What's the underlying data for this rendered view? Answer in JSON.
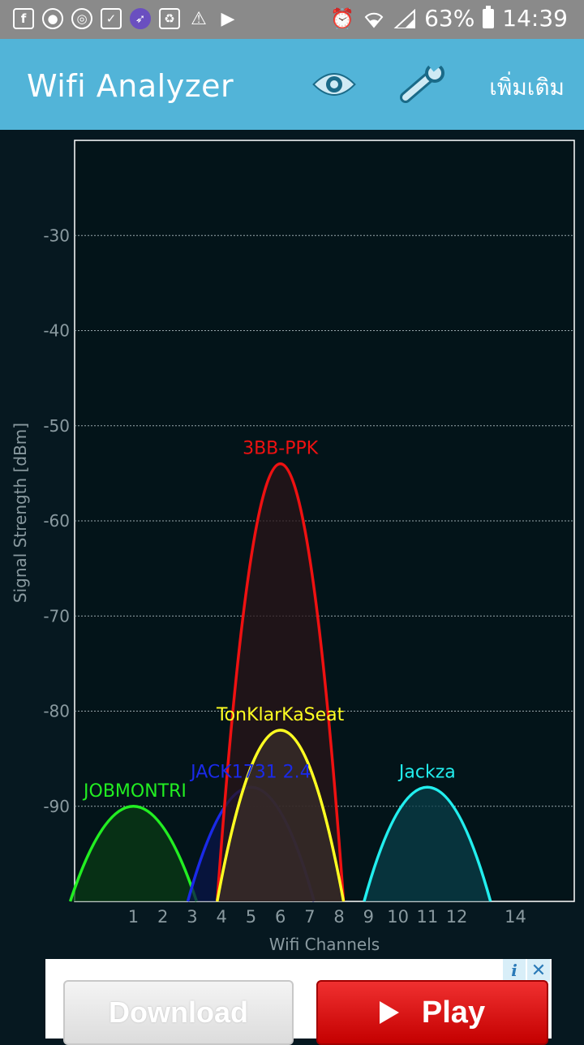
{
  "status_bar": {
    "left_icons": [
      "facebook-icon",
      "record-icon",
      "instagram-icon",
      "phone-check-icon",
      "rocket-icon",
      "recycle-icon",
      "warning-icon",
      "play-store-icon"
    ],
    "battery": "63%",
    "time": "14:39"
  },
  "app_bar": {
    "title": "Wifi Analyzer",
    "more_label": "เพิ่มเติม",
    "color": "#52b4d8"
  },
  "chart_data": {
    "type": "line",
    "xlabel": "Wifi Channels",
    "ylabel": "Signal Strength [dBm]",
    "ylim": [
      -100,
      -20
    ],
    "xlim": [
      -1,
      16
    ],
    "yticks": [
      -30,
      -40,
      -50,
      -60,
      -70,
      -80,
      -90
    ],
    "xticks": [
      1,
      2,
      3,
      4,
      5,
      6,
      7,
      8,
      9,
      10,
      11,
      12,
      14
    ],
    "grid": true,
    "series": [
      {
        "name": "JOBMONTRI",
        "channel": 1,
        "peak": -90,
        "color": "#22ee22",
        "fill": "#0a3a14"
      },
      {
        "name": "JACK1731 2.4",
        "channel": 5,
        "peak": -88,
        "color": "#1a2ae8",
        "fill": "#0a1448"
      },
      {
        "name": "3BB-PPK",
        "channel": 6,
        "peak": -54,
        "color": "#ee1111",
        "fill": "#2a1418"
      },
      {
        "name": "TonKlarKaSeat",
        "channel": 6,
        "peak": -82,
        "color": "#ffff22",
        "fill": "#3a2e2a"
      },
      {
        "name": "Jackza",
        "channel": 11,
        "peak": -88,
        "color": "#22eeee",
        "fill": "#0a3e48"
      }
    ]
  },
  "ad": {
    "download_label": "Download",
    "play_label": "Play",
    "info_symbol": "i",
    "close_symbol": "✕"
  }
}
